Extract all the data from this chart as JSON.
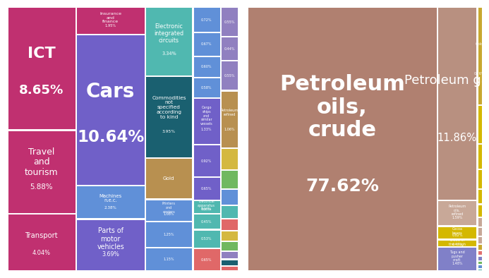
{
  "japan_items": [
    {
      "label": "ICT",
      "pct": "8.65%",
      "value": 8.65,
      "color": "#c03070",
      "fs": 16,
      "bold": true
    },
    {
      "label": "Travel\nand\ntourism",
      "pct": "5.88%",
      "value": 5.88,
      "color": "#c03070",
      "fs": 9,
      "bold": false
    },
    {
      "label": "Transport",
      "pct": "4.04%",
      "value": 4.04,
      "color": "#c03070",
      "fs": 8,
      "bold": false
    },
    {
      "label": "Insurance\nand\nfinance",
      "pct": "1.95%",
      "value": 1.95,
      "color": "#c03070",
      "fs": 7,
      "bold": false
    },
    {
      "label": "Cars",
      "pct": "10.64%",
      "value": 10.64,
      "color": "#7060c8",
      "fs": 20,
      "bold": true
    },
    {
      "label": "Machines\nn.e.c.",
      "pct": "2.38%",
      "value": 2.38,
      "color": "#6090d8",
      "fs": 7,
      "bold": false
    },
    {
      "label": "Parts of\nmotor\nvehicles",
      "pct": "3.69%",
      "value": 3.69,
      "color": "#7060c8",
      "fs": 8,
      "bold": false
    },
    {
      "label": "Electronic\nintegrated\ncircuits",
      "pct": "3.34%",
      "value": 3.34,
      "color": "#50b8b0",
      "fs": 7,
      "bold": false
    },
    {
      "label": "Commodities\nnot\nspecified\naccording\nto kind",
      "pct": "3.95%",
      "value": 3.95,
      "color": "#1a6070",
      "fs": 6,
      "bold": false
    },
    {
      "label": "Gold",
      "pct": "",
      "value": 2.0,
      "color": "#b89050",
      "fs": 8,
      "bold": false
    },
    {
      "label": "Printers\nand\ncopiers",
      "pct": "1.08%",
      "value": 1.08,
      "color": "#6090d8",
      "fs": 5,
      "bold": false
    },
    {
      "label": "",
      "pct": "1.25%",
      "value": 1.25,
      "color": "#6090d8",
      "fs": 5,
      "bold": false
    },
    {
      "label": "",
      "pct": "1.15%",
      "value": 1.15,
      "color": "#6090d8",
      "fs": 5,
      "bold": false
    },
    {
      "label": "",
      "pct": "0.72%",
      "value": 0.72,
      "color": "#6090d8",
      "fs": 5,
      "bold": false
    },
    {
      "label": "",
      "pct": "0.67%",
      "value": 0.67,
      "color": "#6090d8",
      "fs": 5,
      "bold": false
    },
    {
      "label": "",
      "pct": "0.60%",
      "value": 0.6,
      "color": "#6090d8",
      "fs": 5,
      "bold": false
    },
    {
      "label": "",
      "pct": "0.58%",
      "value": 0.58,
      "color": "#6090d8",
      "fs": 5,
      "bold": false
    },
    {
      "label": "Cargo\nships\nand\nsimilar\nvessels",
      "pct": "1.33%",
      "value": 1.33,
      "color": "#7060c8",
      "fs": 5,
      "bold": false
    },
    {
      "label": "",
      "pct": "0.92%",
      "value": 0.92,
      "color": "#7060c8",
      "fs": 5,
      "bold": false
    },
    {
      "label": "",
      "pct": "0.65%",
      "value": 0.65,
      "color": "#7060c8",
      "fs": 5,
      "bold": false
    },
    {
      "label": "Electrical\napparatus\nfor tv",
      "pct": "0.38%",
      "value": 0.38,
      "color": "#50b8b0",
      "fs": 4,
      "bold": false
    },
    {
      "label": "",
      "pct": "0.45%",
      "value": 0.45,
      "color": "#50b8b0",
      "fs": 4,
      "bold": false
    },
    {
      "label": "",
      "pct": "0.53%",
      "value": 0.53,
      "color": "#50b8b0",
      "fs": 4,
      "bold": false
    },
    {
      "label": "",
      "pct": "0.65%",
      "value": 0.65,
      "color": "#e06868",
      "fs": 4,
      "bold": false
    },
    {
      "label": "",
      "pct": "0.55%",
      "value": 0.55,
      "color": "#9080c0",
      "fs": 4,
      "bold": false
    },
    {
      "label": "",
      "pct": "0.44%",
      "value": 0.44,
      "color": "#9080c0",
      "fs": 4,
      "bold": false
    },
    {
      "label": "",
      "pct": "0.55%",
      "value": 0.55,
      "color": "#9080c0",
      "fs": 4,
      "bold": false
    },
    {
      "label": "Petroleum\nrefined",
      "pct": "1.06%",
      "value": 1.06,
      "color": "#b89050",
      "fs": 5,
      "bold": false
    },
    {
      "label": "",
      "pct": "",
      "value": 0.4,
      "color": "#d4b840",
      "fs": 4,
      "bold": false
    },
    {
      "label": "",
      "pct": "",
      "value": 0.35,
      "color": "#70b860",
      "fs": 4,
      "bold": false
    },
    {
      "label": "",
      "pct": "",
      "value": 0.3,
      "color": "#6090d8",
      "fs": 4,
      "bold": false
    },
    {
      "label": "",
      "pct": "",
      "value": 0.25,
      "color": "#50b8b0",
      "fs": 4,
      "bold": false
    },
    {
      "label": "",
      "pct": "",
      "value": 0.22,
      "color": "#e06868",
      "fs": 4,
      "bold": false
    },
    {
      "label": "",
      "pct": "",
      "value": 0.2,
      "color": "#d4b840",
      "fs": 4,
      "bold": false
    },
    {
      "label": "",
      "pct": "",
      "value": 0.18,
      "color": "#70b860",
      "fs": 4,
      "bold": false
    },
    {
      "label": "",
      "pct": "",
      "value": 0.15,
      "color": "#9080c0",
      "fs": 4,
      "bold": false
    },
    {
      "label": "",
      "pct": "",
      "value": 0.12,
      "color": "#1a6070",
      "fs": 4,
      "bold": false
    },
    {
      "label": "",
      "pct": "",
      "value": 0.1,
      "color": "#e06868",
      "fs": 4,
      "bold": false
    },
    {
      "label": "",
      "pct": "",
      "value": 0.09,
      "color": "#6090d8",
      "fs": 4,
      "bold": false
    },
    {
      "label": "",
      "pct": "",
      "value": 0.08,
      "color": "#50b8b0",
      "fs": 4,
      "bold": false
    },
    {
      "label": "",
      "pct": "",
      "value": 0.07,
      "color": "#d4b840",
      "fs": 4,
      "bold": false
    },
    {
      "label": "",
      "pct": "",
      "value": 0.06,
      "color": "#70b860",
      "fs": 4,
      "bold": false
    },
    {
      "label": "",
      "pct": "",
      "value": 0.05,
      "color": "#9080c0",
      "fs": 4,
      "bold": false
    }
  ],
  "nigeria_items": [
    {
      "label": "Petroleum\noils,\ncrude",
      "pct": "77.62%",
      "value": 77.62,
      "color": "#b08070",
      "fs": 22,
      "bold": true
    },
    {
      "label": "Petroleum gases",
      "pct": "11.86%",
      "value": 11.86,
      "color": "#b89080",
      "fs": 13,
      "bold": false
    },
    {
      "label": "Petroleum\noils,\nrefined",
      "pct": "1.59%",
      "value": 1.59,
      "color": "#c8a898",
      "fs": 5,
      "bold": false
    },
    {
      "label": "Cocoa\nbeans",
      "pct": "0.82%",
      "value": 0.82,
      "color": "#d4b800",
      "fs": 6,
      "bold": false
    },
    {
      "label": "Blood in\nthe rough",
      "pct": "0.47%",
      "value": 0.47,
      "color": "#d4b800",
      "fs": 5,
      "bold": false
    },
    {
      "label": "Tugs and\npusher\ncraft",
      "pct": "1.48%",
      "value": 1.48,
      "color": "#8080c8",
      "fs": 6,
      "bold": false
    },
    {
      "label": "Gold",
      "pct": "0.76%",
      "value": 0.76,
      "color": "#c8a830",
      "fs": 7,
      "bold": false
    },
    {
      "label": "",
      "pct": "0.30%",
      "value": 0.3,
      "color": "#d4b800",
      "fs": 5,
      "bold": false
    },
    {
      "label": "",
      "pct": "",
      "value": 0.2,
      "color": "#d4b800",
      "fs": 4,
      "bold": false
    },
    {
      "label": "",
      "pct": "",
      "value": 0.15,
      "color": "#d4b800",
      "fs": 4,
      "bold": false
    },
    {
      "label": "",
      "pct": "",
      "value": 0.12,
      "color": "#d4b800",
      "fs": 4,
      "bold": false
    },
    {
      "label": "",
      "pct": "",
      "value": 0.1,
      "color": "#d4b800",
      "fs": 4,
      "bold": false
    },
    {
      "label": "",
      "pct": "",
      "value": 0.08,
      "color": "#c8a898",
      "fs": 4,
      "bold": false
    },
    {
      "label": "",
      "pct": "",
      "value": 0.07,
      "color": "#c8a898",
      "fs": 4,
      "bold": false
    },
    {
      "label": "",
      "pct": "",
      "value": 0.06,
      "color": "#c8a898",
      "fs": 4,
      "bold": false
    },
    {
      "label": "",
      "pct": "",
      "value": 0.05,
      "color": "#c8a830",
      "fs": 4,
      "bold": false
    },
    {
      "label": "",
      "pct": "",
      "value": 0.04,
      "color": "#e07070",
      "fs": 4,
      "bold": false
    },
    {
      "label": "",
      "pct": "",
      "value": 0.04,
      "color": "#8080c8",
      "fs": 4,
      "bold": false
    },
    {
      "label": "",
      "pct": "",
      "value": 0.03,
      "color": "#70b860",
      "fs": 4,
      "bold": false
    },
    {
      "label": "",
      "pct": "",
      "value": 0.03,
      "color": "#6090d0",
      "fs": 4,
      "bold": false
    },
    {
      "label": "",
      "pct": "",
      "value": 0.02,
      "color": "#50b0a8",
      "fs": 4,
      "bold": false
    }
  ],
  "bg_color": "#ffffff",
  "text_color": "white"
}
